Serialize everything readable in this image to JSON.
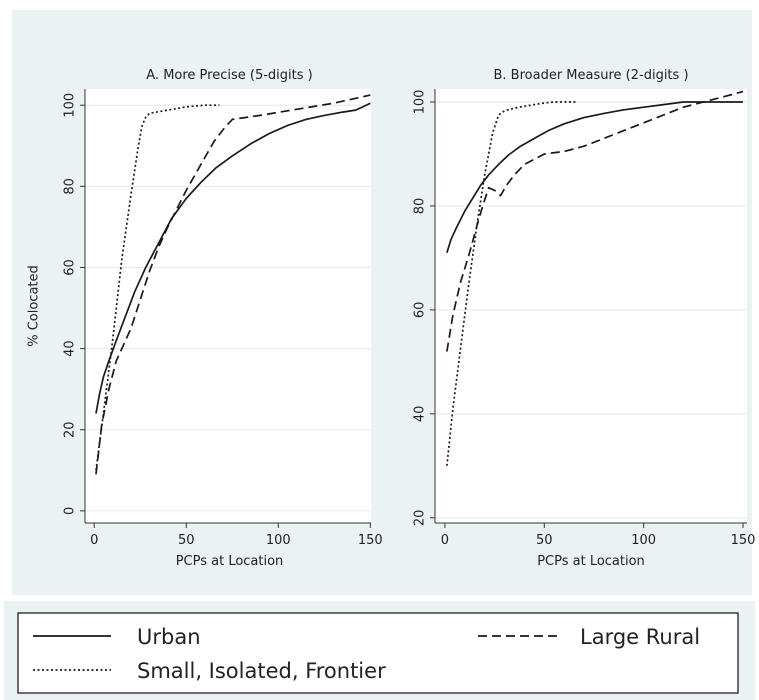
{
  "colors": {
    "outer_background": "#eaf2f3",
    "legend_background": "#eaf2f3",
    "plot_background": "#ffffff",
    "gridline": "#e8ebee",
    "line": "#1a1a1a"
  },
  "legend": {
    "placement": "bottom",
    "entries": [
      {
        "label": "Urban",
        "line_style": "solid"
      },
      {
        "label": "Large Rural",
        "line_style": "dashed"
      },
      {
        "label": "Small, Isolated, Frontier",
        "line_style": "dotted"
      }
    ]
  },
  "chart_data": [
    {
      "type": "line",
      "title": "A. More Precise (5-digits )",
      "xlabel": "PCPs at Location",
      "ylabel": "% Colocated",
      "xlim": [
        -5,
        152
      ],
      "ylim": [
        -3,
        104
      ],
      "xticks": [
        0,
        50,
        100,
        150
      ],
      "yticks": [
        0,
        20,
        40,
        60,
        80,
        100
      ],
      "grid": true,
      "series": [
        {
          "name": "Urban",
          "style": "solid",
          "x": [
            1,
            3,
            5,
            8,
            12,
            17,
            22,
            28,
            35,
            42,
            50,
            58,
            66,
            75,
            85,
            95,
            105,
            115,
            125,
            135,
            142,
            146,
            150
          ],
          "y": [
            24,
            29,
            33,
            37,
            42,
            48,
            54,
            60,
            66,
            72,
            77,
            81,
            84.5,
            87.5,
            90.5,
            93,
            95,
            96.5,
            97.5,
            98.3,
            98.8,
            99.6,
            100.5
          ]
        },
        {
          "name": "Large Rural",
          "style": "dashed",
          "x": [
            1,
            4,
            8,
            12,
            16,
            20,
            25,
            30,
            35,
            40,
            45,
            50,
            55,
            60,
            65,
            70,
            75,
            90,
            110,
            130,
            150
          ],
          "y": [
            9,
            21,
            30,
            37,
            41,
            45,
            52,
            59,
            65,
            70,
            74.5,
            79,
            83,
            87,
            91,
            94,
            96.5,
            97.5,
            99,
            100.5,
            102.5
          ]
        },
        {
          "name": "Small, Isolated, Frontier",
          "style": "dotted",
          "x": [
            1,
            5,
            10,
            15,
            20,
            24,
            26,
            28,
            30,
            35,
            40,
            45,
            50,
            55,
            60,
            65,
            68
          ],
          "y": [
            10,
            24,
            42,
            62,
            78,
            90,
            95,
            97,
            98,
            98.4,
            98.8,
            99.2,
            99.6,
            99.8,
            100,
            100,
            100
          ]
        }
      ]
    },
    {
      "type": "line",
      "title": "B. Broader Measure (2-digits )",
      "xlabel": "PCPs at Location",
      "ylabel": "",
      "xlim": [
        -5,
        152
      ],
      "ylim": [
        19,
        102.5
      ],
      "xticks": [
        0,
        50,
        100,
        150
      ],
      "yticks": [
        20,
        40,
        60,
        80,
        100
      ],
      "grid": true,
      "series": [
        {
          "name": "Urban",
          "style": "solid",
          "x": [
            1,
            3,
            6,
            10,
            14,
            18,
            22,
            27,
            32,
            38,
            45,
            52,
            60,
            70,
            80,
            90,
            100,
            110,
            120,
            130,
            140,
            150
          ],
          "y": [
            71,
            73.5,
            76,
            79,
            81.5,
            84,
            86,
            88,
            89.8,
            91.5,
            93,
            94.5,
            95.8,
            97,
            97.8,
            98.5,
            99,
            99.5,
            100,
            100,
            100,
            100
          ]
        },
        {
          "name": "Large Rural",
          "style": "dashed",
          "x": [
            1,
            4,
            8,
            12,
            16,
            19,
            22,
            25,
            28,
            31,
            35,
            40,
            45,
            50,
            60,
            70,
            80,
            90,
            100,
            110,
            120,
            130,
            140,
            150
          ],
          "y": [
            52,
            59,
            65.5,
            70.5,
            76,
            80,
            83.5,
            83,
            82,
            84,
            86,
            88,
            89,
            90,
            90.5,
            91.5,
            93,
            94.5,
            96,
            97.5,
            99,
            100,
            101,
            102
          ]
        },
        {
          "name": "Small, Isolated, Frontier",
          "style": "dotted",
          "x": [
            1,
            4,
            8,
            12,
            16,
            20,
            24,
            27,
            30,
            35,
            40,
            45,
            50,
            55,
            60,
            66
          ],
          "y": [
            30,
            41,
            53,
            65,
            76,
            86,
            94,
            97.5,
            98.3,
            98.8,
            99.2,
            99.5,
            99.8,
            100,
            100,
            100
          ]
        }
      ]
    }
  ]
}
